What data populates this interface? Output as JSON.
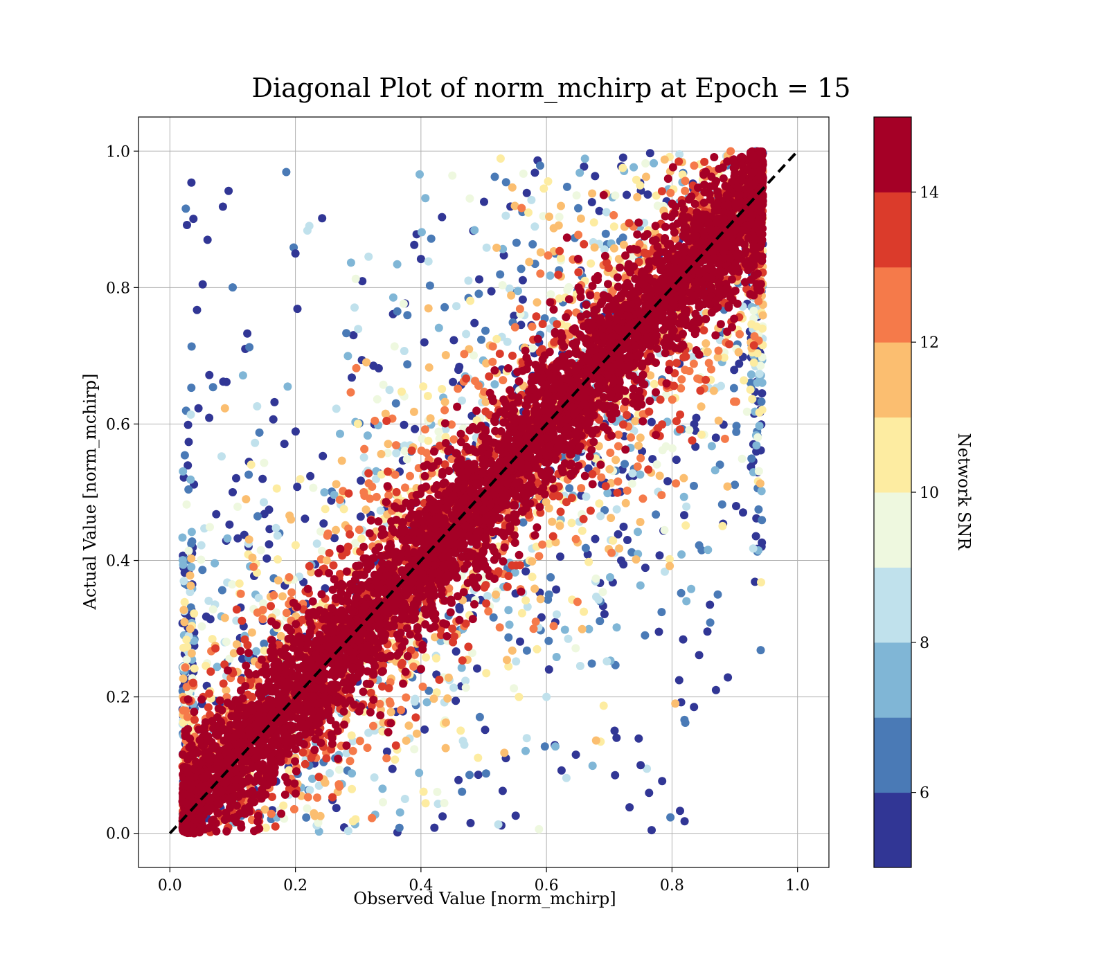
{
  "chart_data": {
    "type": "scatter",
    "title": "Diagonal Plot of norm_mchirp at Epoch = 15",
    "xlabel": "Observed Value [norm_mchirp]",
    "ylabel": "Actual Value [norm_mchirp]",
    "xlim": [
      -0.05,
      1.05
    ],
    "ylim": [
      -0.05,
      1.05
    ],
    "xticks": [
      "0.0",
      "0.2",
      "0.4",
      "0.6",
      "0.8",
      "1.0"
    ],
    "yticks": [
      "0.0",
      "0.2",
      "0.4",
      "0.6",
      "0.8",
      "1.0"
    ],
    "grid": true,
    "reference_line": {
      "x": [
        0,
        1
      ],
      "y": [
        0,
        1
      ],
      "style": "dashed",
      "color": "#000000"
    },
    "colorbar": {
      "label": "Network SNR",
      "range": [
        5,
        15
      ],
      "ticks": [
        "6",
        "8",
        "10",
        "12",
        "14"
      ],
      "levels": [
        {
          "from": 5,
          "to": 6,
          "color": "#313695"
        },
        {
          "from": 6,
          "to": 7,
          "color": "#4a7ab6"
        },
        {
          "from": 7,
          "to": 8,
          "color": "#80b6d6"
        },
        {
          "from": 8,
          "to": 9,
          "color": "#c0e1ec"
        },
        {
          "from": 9,
          "to": 10,
          "color": "#eef8df"
        },
        {
          "from": 10,
          "to": 11,
          "color": "#fdeca1"
        },
        {
          "from": 11,
          "to": 12,
          "color": "#fbbe70"
        },
        {
          "from": 12,
          "to": 13,
          "color": "#f57a4a"
        },
        {
          "from": 13,
          "to": 14,
          "color": "#db3b2b"
        },
        {
          "from": 14,
          "to": 15,
          "color": "#a50026"
        }
      ]
    },
    "series": [
      {
        "distribution": "dense points along y = x with scatter widening as SNR decreases; observed values bounded in [0.02, 0.95], actual values in [0, 1]",
        "sample_points": [
          {
            "x": 0.05,
            "y": 0.02,
            "snr": 15
          },
          {
            "x": 0.3,
            "y": 0.31,
            "snr": 15
          },
          {
            "x": 0.6,
            "y": 0.58,
            "snr": 15
          },
          {
            "x": 0.85,
            "y": 0.9,
            "snr": 15
          },
          {
            "x": 0.45,
            "y": 0.3,
            "snr": 13
          },
          {
            "x": 0.75,
            "y": 0.55,
            "snr": 12
          },
          {
            "x": 0.25,
            "y": 0.4,
            "snr": 11
          },
          {
            "x": 0.35,
            "y": 0.65,
            "snr": 8
          },
          {
            "x": 0.6,
            "y": 0.2,
            "snr": 8
          },
          {
            "x": 0.2,
            "y": 0.85,
            "snr": 5
          },
          {
            "x": 0.1,
            "y": 0.5,
            "snr": 5
          },
          {
            "x": 0.75,
            "y": 0.1,
            "snr": 5
          },
          {
            "x": 0.87,
            "y": 0.21,
            "snr": 5
          },
          {
            "x": 0.06,
            "y": 0.87,
            "snr": 5
          }
        ]
      }
    ]
  }
}
